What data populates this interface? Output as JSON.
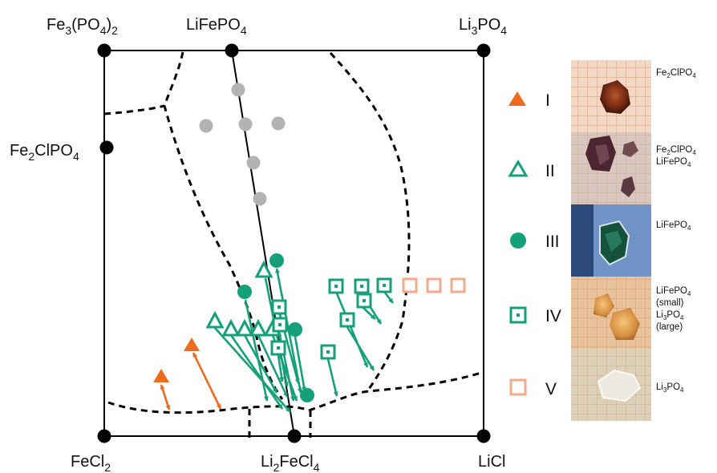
{
  "corners": {
    "top_left": {
      "main": "Fe",
      "sub1": "3",
      "mid": "(PO",
      "sub2": "4",
      "end": ")",
      "sub3": "2"
    },
    "top_mid": {
      "main": "LiFePO",
      "sub1": "4"
    },
    "top_right": {
      "main": "Li",
      "sub1": "3",
      "mid": "PO",
      "sub2": "4"
    },
    "left_mid": {
      "main": "Fe",
      "sub1": "2",
      "mid": "ClPO",
      "sub2": "4"
    },
    "bottom_left": {
      "main": "FeCl",
      "sub1": "2"
    },
    "bottom_mid": {
      "main": "Li",
      "sub1": "2",
      "mid": "FeCl",
      "sub2": "4"
    },
    "bottom_right": {
      "main": "LiCl"
    }
  },
  "legend": [
    {
      "label": "I",
      "symbol": "filled-triangle",
      "color": "#ee6a1c"
    },
    {
      "label": "II",
      "symbol": "open-triangle",
      "color": "#14a079"
    },
    {
      "label": "III",
      "symbol": "filled-circle",
      "color": "#14a079"
    },
    {
      "label": "IV",
      "symbol": "dotted-square",
      "color": "#14a079"
    },
    {
      "label": "V",
      "symbol": "open-square",
      "color": "#f3a98a"
    }
  ],
  "photo_captions": [
    {
      "lines": [
        [
          {
            "t": "Fe"
          },
          {
            "t": "2",
            "sub": true
          },
          {
            "t": "ClPO"
          },
          {
            "t": "4",
            "sub": true
          }
        ]
      ]
    },
    {
      "lines": [
        [
          {
            "t": "Fe"
          },
          {
            "t": "2",
            "sub": true
          },
          {
            "t": "ClPO"
          },
          {
            "t": "4",
            "sub": true
          }
        ],
        [
          {
            "t": "LiFePO"
          },
          {
            "t": "4",
            "sub": true
          }
        ]
      ]
    },
    {
      "lines": [
        [
          {
            "t": "LiFePO"
          },
          {
            "t": "4",
            "sub": true
          }
        ]
      ]
    },
    {
      "lines": [
        [
          {
            "t": "LiFePO"
          },
          {
            "t": "4",
            "sub": true
          }
        ],
        [
          {
            "t": "(small)"
          }
        ],
        [
          {
            "t": "Li"
          },
          {
            "t": "3",
            "sub": true
          },
          {
            "t": "PO"
          },
          {
            "t": "4",
            "sub": true
          }
        ],
        [
          {
            "t": "(large)"
          }
        ]
      ]
    },
    {
      "lines": [
        [
          {
            "t": "Li"
          },
          {
            "t": "3",
            "sub": true
          },
          {
            "t": "PO"
          },
          {
            "t": "4",
            "sub": true
          }
        ]
      ]
    }
  ],
  "colors": {
    "orange": "#ee6a1c",
    "green": "#14a079",
    "salmon": "#f3a98a",
    "gray": "#b3b3b3",
    "frame": "#000000"
  }
}
